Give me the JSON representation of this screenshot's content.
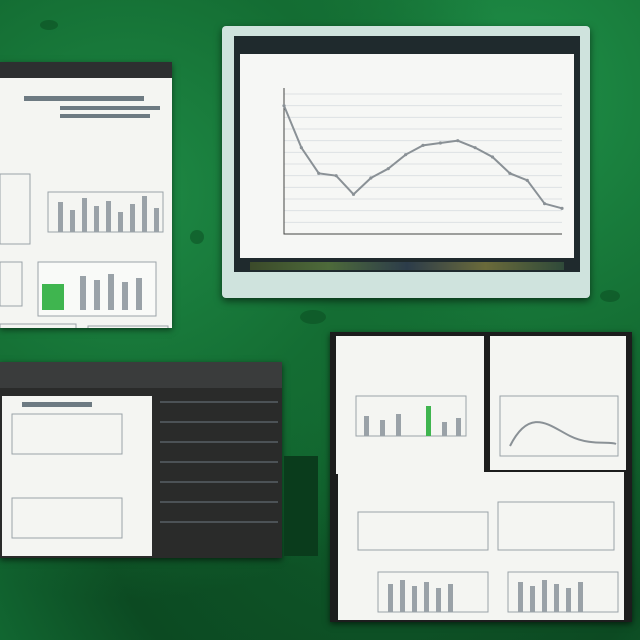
{
  "chart_data": {
    "type": "line",
    "title": "",
    "xlabel": "",
    "ylabel": "",
    "categories": [
      "",
      "",
      "",
      "",
      "",
      "",
      "",
      "",
      "",
      "",
      "",
      "",
      "",
      "",
      "",
      "",
      ""
    ],
    "series": [
      {
        "values": [
          100,
          82,
          71,
          70,
          62,
          69,
          73,
          79,
          83,
          84,
          85,
          82,
          78,
          71,
          68,
          58,
          56
        ]
      }
    ],
    "ylim": [
      45,
      105
    ],
    "grid": true
  },
  "colors": {
    "background_green": "#137036",
    "monitor_frame": "#cfe3dd",
    "line_series": "#8a9196",
    "accent_green": "#3fb54f"
  }
}
